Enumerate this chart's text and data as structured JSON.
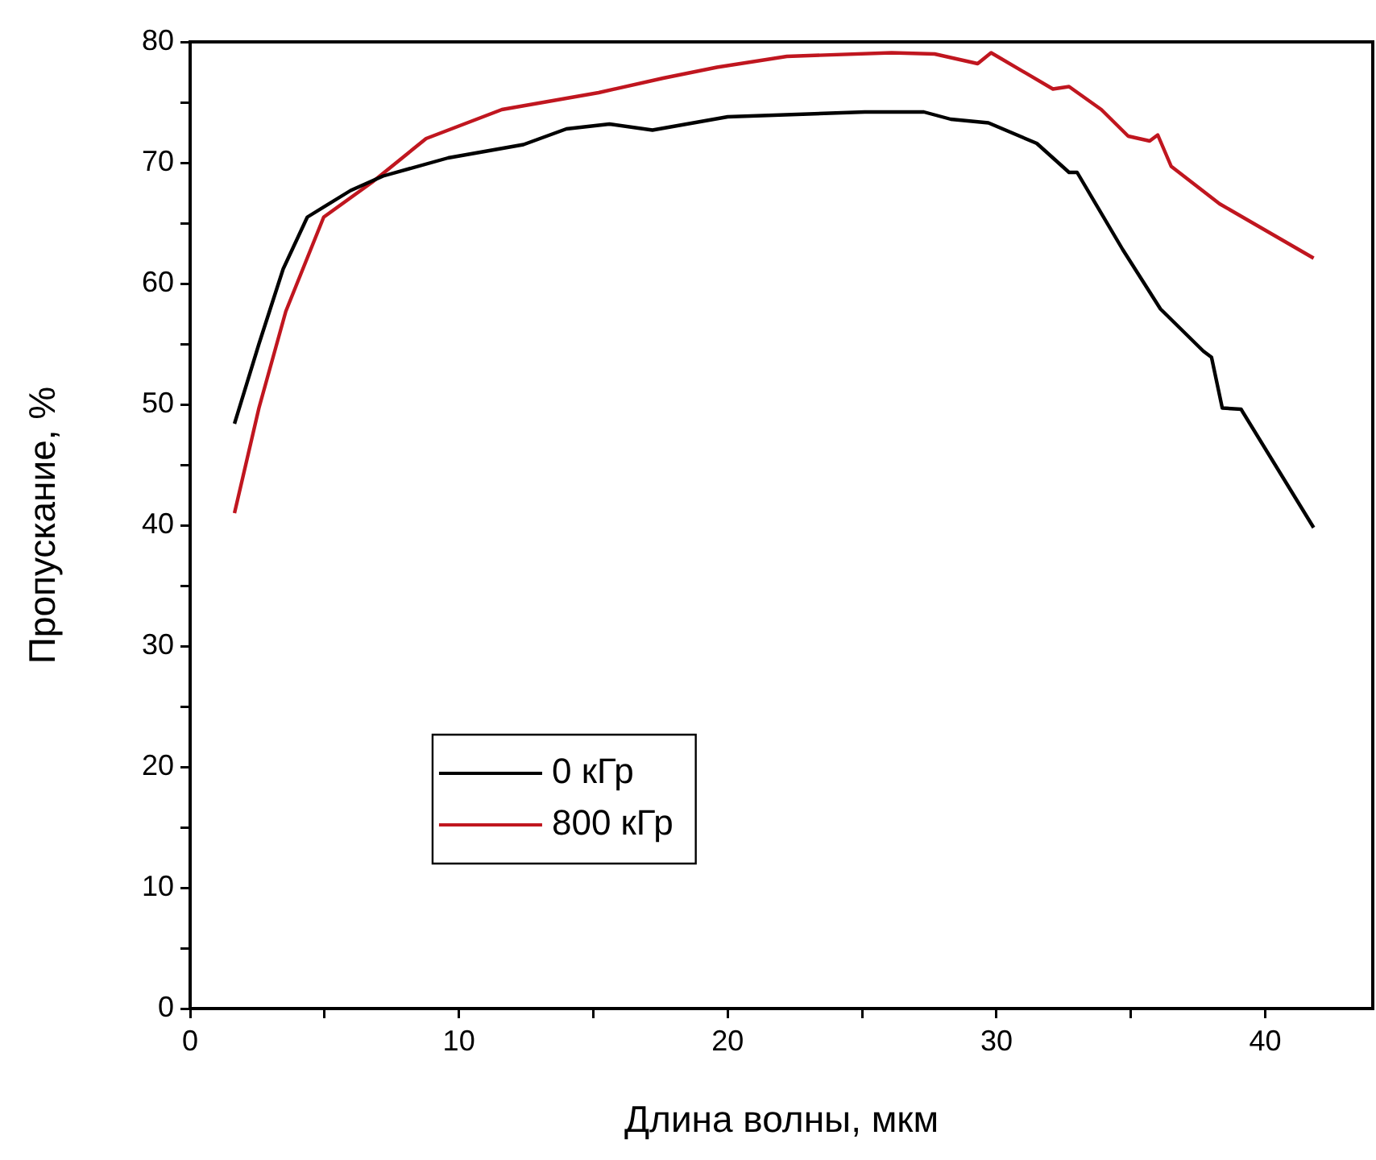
{
  "chart_data": {
    "type": "line",
    "xlabel": "Длина волны, мкм",
    "ylabel": "Пропускание, %",
    "xlim": [
      0,
      44
    ],
    "ylim": [
      0,
      80
    ],
    "xticks": [
      0,
      {
        "value": 5,
        "label": null
      },
      10,
      {
        "value": 15,
        "label": null
      },
      20,
      {
        "value": 25,
        "label": null
      },
      30,
      {
        "value": 35,
        "label": null
      },
      40
    ],
    "yticks": [
      0,
      {
        "value": 5,
        "label": null
      },
      10,
      {
        "value": 15,
        "label": null
      },
      20,
      {
        "value": 25,
        "label": null
      },
      30,
      {
        "value": 35,
        "label": null
      },
      40,
      {
        "value": 45,
        "label": null
      },
      50,
      {
        "value": 55,
        "label": null
      },
      60,
      {
        "value": 65,
        "label": null
      },
      70,
      {
        "value": 75,
        "label": null
      },
      80
    ],
    "grid": false,
    "legend": "bottom left",
    "marker": "none",
    "line_style": "solid",
    "series": [
      {
        "name": "0 кГр",
        "color": "#000000",
        "x": [
          1.65,
          2.56,
          3.46,
          4.36,
          5.97,
          7.18,
          9.6,
          12.4,
          14.0,
          15.6,
          17.2,
          20.0,
          25.1,
          27.3,
          28.3,
          29.7,
          31.5,
          32.7,
          33.0,
          34.7,
          36.1,
          37.7,
          38.0,
          38.4,
          39.1,
          41.8
        ],
        "values": [
          48.4,
          55.0,
          61.2,
          65.5,
          67.7,
          68.9,
          70.4,
          71.5,
          72.8,
          73.2,
          72.7,
          73.8,
          74.2,
          74.2,
          73.6,
          73.3,
          71.6,
          69.2,
          69.2,
          62.8,
          57.9,
          54.4,
          53.9,
          49.7,
          49.6,
          39.8
        ]
      },
      {
        "name": "800 кГр",
        "color": "#c0161f",
        "x": [
          1.65,
          2.56,
          3.56,
          4.97,
          6.78,
          8.78,
          11.6,
          15.2,
          17.6,
          19.6,
          22.2,
          26.1,
          27.7,
          29.3,
          29.8,
          32.1,
          32.7,
          33.9,
          34.9,
          35.7,
          36.0,
          36.5,
          38.3,
          41.8
        ],
        "values": [
          41.0,
          49.7,
          57.7,
          65.5,
          68.4,
          72.0,
          74.4,
          75.8,
          77.0,
          77.9,
          78.8,
          79.1,
          79.0,
          78.2,
          79.1,
          76.1,
          76.3,
          74.4,
          72.2,
          71.8,
          72.3,
          69.7,
          66.6,
          62.1
        ]
      }
    ]
  }
}
